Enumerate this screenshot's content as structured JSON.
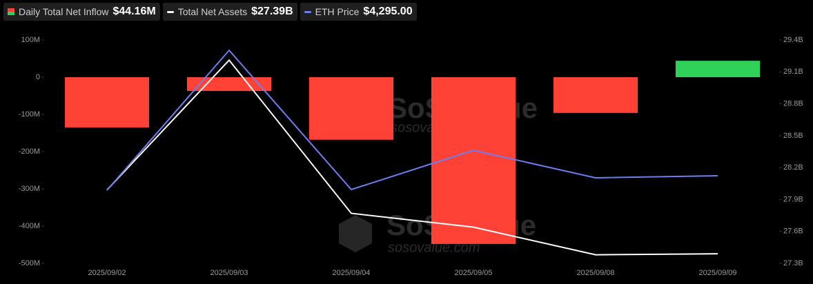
{
  "chart_data": {
    "type": "combo",
    "categories": [
      "2025/09/02",
      "2025/09/03",
      "2025/09/04",
      "2025/09/05",
      "2025/09/08",
      "2025/09/09"
    ],
    "series": [
      {
        "name": "Daily Total Net Inflow",
        "type": "bar",
        "axis": "y",
        "color_positive": "#2fd158",
        "color_negative": "#ff4136",
        "values": [
          -135,
          -37,
          -168,
          -448,
          -96,
          44.16
        ],
        "legend_label": "$44.16M"
      },
      {
        "name": "Total Net Assets",
        "type": "line",
        "axis": "y2",
        "color": "#ffffff",
        "values": [
          27.99,
          29.21,
          27.77,
          27.64,
          27.38,
          27.39
        ],
        "legend_label": "$27.39B"
      },
      {
        "name": "ETH Price",
        "type": "line",
        "axis": "y3",
        "color": "#6b7ff0",
        "values": [
          4274,
          4477,
          4275,
          4332,
          4292,
          4295
        ],
        "legend_label": "$4,295.00"
      }
    ],
    "ylim": [
      -500,
      100
    ],
    "yticks": [
      {
        "value": 100,
        "label": "100M"
      },
      0,
      {
        "value": -100,
        "label": "-100M"
      },
      {
        "value": -200,
        "label": "-200M"
      },
      {
        "value": -300,
        "label": "-300M"
      },
      {
        "value": -400,
        "label": "-400M"
      },
      {
        "value": -500,
        "label": "-500M"
      }
    ],
    "y2lim": [
      27.3,
      29.4
    ],
    "y2ticks": [
      {
        "value": 29.4,
        "label": "29.4B"
      },
      {
        "value": 29.1,
        "label": "29.1B"
      },
      {
        "value": 28.8,
        "label": "28.8B"
      },
      {
        "value": 28.5,
        "label": "28.5B"
      },
      {
        "value": 28.2,
        "label": "28.2B"
      },
      {
        "value": 27.9,
        "label": "27.9B"
      },
      {
        "value": 27.6,
        "label": "27.6B"
      },
      {
        "value": 27.3,
        "label": "27.3B"
      }
    ],
    "y3lim": [
      4168,
      4492
    ],
    "grid": false,
    "watermark": {
      "name": "SoSoValue",
      "url": "sosovalue.com"
    }
  }
}
